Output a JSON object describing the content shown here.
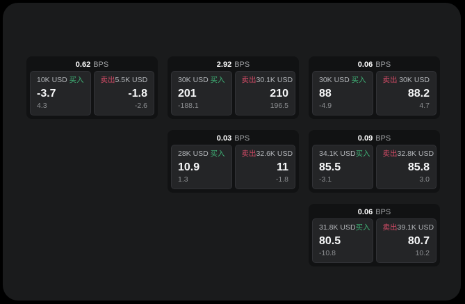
{
  "labels": {
    "buy": "买入",
    "sell": "卖出",
    "bps_unit": "BPS"
  },
  "colors": {
    "page_background": "#000000",
    "window_background": "#1a1b1c",
    "card_background": "#111213",
    "panel_background": "#242527",
    "buy_green": "#3fb176",
    "sell_red": "#d14b66",
    "primary_text": "#f6f7f8",
    "secondary_text": "#b4b7bb",
    "muted_text": "#8d8f92"
  },
  "quotes": [
    {
      "bps": "0.62",
      "buy": {
        "amount": "10K USD",
        "price": "-3.7",
        "delta": "4.3"
      },
      "sell": {
        "amount": "5.5K USD",
        "price": "-1.8",
        "delta": "-2.6"
      }
    },
    {
      "bps": "2.92",
      "buy": {
        "amount": "30K USD",
        "price": "201",
        "delta": "-188.1"
      },
      "sell": {
        "amount": "30.1K USD",
        "price": "210",
        "delta": "196.5"
      }
    },
    {
      "bps": "0.06",
      "buy": {
        "amount": "30K USD",
        "price": "88",
        "delta": "-4.9"
      },
      "sell": {
        "amount": "30K USD",
        "price": "88.2",
        "delta": "4.7"
      }
    },
    {
      "bps": "0.03",
      "buy": {
        "amount": "28K USD",
        "price": "10.9",
        "delta": "1.3"
      },
      "sell": {
        "amount": "32.6K USD",
        "price": "11",
        "delta": "-1.8"
      }
    },
    {
      "bps": "0.09",
      "buy": {
        "amount": "34.1K USD",
        "price": "85.5",
        "delta": "-3.1"
      },
      "sell": {
        "amount": "32.8K USD",
        "price": "85.8",
        "delta": "3.0"
      }
    },
    {
      "bps": "0.06",
      "buy": {
        "amount": "31.8K USD",
        "price": "80.5",
        "delta": "-10.8"
      },
      "sell": {
        "amount": "39.1K USD",
        "price": "80.7",
        "delta": "10.2"
      }
    }
  ]
}
